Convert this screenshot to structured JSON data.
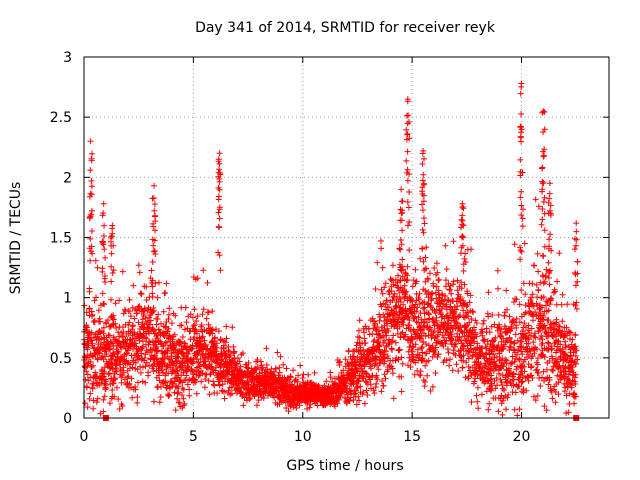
{
  "chart_data": {
    "type": "scatter",
    "title": "Day 341 of 2014, SRMTID for receiver reyk",
    "xlabel": "GPS time / hours",
    "ylabel": "SRMTID / TECUs",
    "xlim": [
      0,
      24
    ],
    "ylim": [
      0,
      3
    ],
    "xticks": [
      0,
      5,
      10,
      15,
      20
    ],
    "yticks": [
      0,
      0.5,
      1,
      1.5,
      2,
      2.5,
      3
    ],
    "ytick_labels": [
      "0",
      "0.5",
      "1",
      "1.5",
      "2",
      "2.5",
      "3"
    ],
    "grid": true,
    "marker": "plus",
    "color": "#ff0000",
    "series": [
      {
        "name": "SRMTID",
        "envelope_hours": [
          0,
          0.5,
          1,
          1.5,
          2,
          2.5,
          3,
          3.5,
          4,
          4.5,
          5,
          5.5,
          6,
          6.5,
          7,
          7.5,
          8,
          8.5,
          9,
          9.5,
          10,
          10.5,
          11,
          11.5,
          12,
          12.5,
          13,
          13.5,
          14,
          14.5,
          15,
          15.5,
          16,
          16.5,
          17,
          17.5,
          18,
          18.5,
          19,
          19.5,
          20,
          20.5,
          21,
          21.5,
          22,
          22.5
        ],
        "typical_value": [
          0.55,
          0.5,
          0.5,
          0.5,
          0.55,
          0.6,
          0.65,
          0.55,
          0.45,
          0.45,
          0.55,
          0.55,
          0.5,
          0.4,
          0.35,
          0.3,
          0.3,
          0.28,
          0.25,
          0.2,
          0.2,
          0.2,
          0.18,
          0.2,
          0.28,
          0.4,
          0.5,
          0.6,
          0.75,
          0.85,
          0.8,
          0.75,
          0.8,
          0.85,
          0.8,
          0.7,
          0.5,
          0.45,
          0.5,
          0.55,
          0.45,
          0.7,
          0.75,
          0.6,
          0.45,
          0.35
        ],
        "spread": [
          0.35,
          0.35,
          0.35,
          0.35,
          0.35,
          0.35,
          0.4,
          0.35,
          0.3,
          0.3,
          0.3,
          0.3,
          0.25,
          0.2,
          0.15,
          0.15,
          0.15,
          0.12,
          0.12,
          0.1,
          0.1,
          0.08,
          0.08,
          0.1,
          0.15,
          0.25,
          0.3,
          0.35,
          0.4,
          0.4,
          0.4,
          0.4,
          0.4,
          0.4,
          0.4,
          0.35,
          0.3,
          0.3,
          0.35,
          0.4,
          0.4,
          0.45,
          0.5,
          0.4,
          0.3,
          0.25
        ],
        "spikes": [
          {
            "x": 0.3,
            "y_max": 2.3
          },
          {
            "x": 0.9,
            "y_max": 1.78
          },
          {
            "x": 1.3,
            "y_max": 1.6
          },
          {
            "x": 3.2,
            "y_max": 1.93
          },
          {
            "x": 6.2,
            "y_max": 2.2
          },
          {
            "x": 14.5,
            "y_max": 1.9
          },
          {
            "x": 14.8,
            "y_max": 2.65
          },
          {
            "x": 15.5,
            "y_max": 2.22
          },
          {
            "x": 17.3,
            "y_max": 1.78
          },
          {
            "x": 20.0,
            "y_max": 2.78
          },
          {
            "x": 21.0,
            "y_max": 2.55
          },
          {
            "x": 21.3,
            "y_max": 1.95
          },
          {
            "x": 22.5,
            "y_max": 1.62
          }
        ],
        "zero_markers": [
          1.0,
          22.5
        ]
      }
    ]
  }
}
